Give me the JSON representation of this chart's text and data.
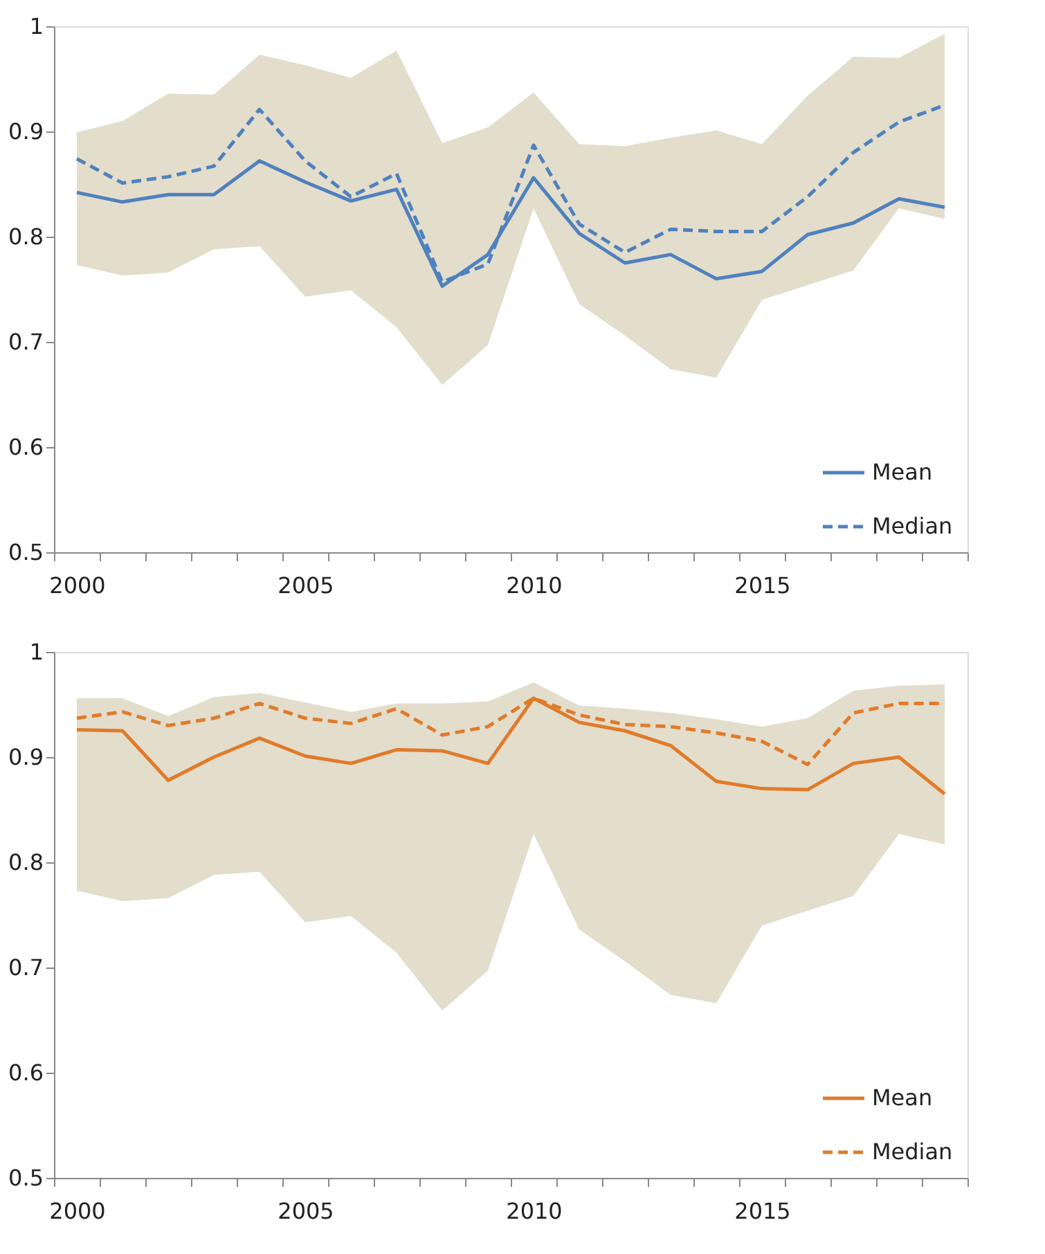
{
  "chart_data": [
    {
      "type": "line",
      "categories": [
        "2000",
        null,
        null,
        null,
        null,
        "2005",
        null,
        null,
        null,
        null,
        "2010",
        null,
        null,
        null,
        null,
        "2015",
        null,
        null,
        null,
        null
      ],
      "ylim": [
        0.5,
        1
      ],
      "yticks": [
        0.5,
        0.6,
        0.7,
        0.8,
        0.9,
        1
      ],
      "grid": false,
      "legend": "bottom right",
      "series": [
        {
          "name": "Mean",
          "color": "#4f81bd",
          "line_style": "solid",
          "values": [
            0.842,
            0.833,
            0.84,
            0.84,
            0.872,
            0.852,
            0.834,
            0.845,
            0.753,
            0.783,
            0.856,
            0.803,
            0.775,
            0.783,
            0.76,
            0.767,
            0.802,
            0.813,
            0.836,
            0.828
          ],
          "lower": [
            0.773,
            0.763,
            0.766,
            0.788,
            0.791,
            0.743,
            0.749,
            0.714,
            0.659,
            0.697,
            0.827,
            0.736,
            0.706,
            0.674,
            0.666,
            0.74,
            0.754,
            0.768,
            0.827,
            0.817
          ],
          "upper": [
            0.899,
            0.91,
            0.936,
            0.935,
            0.973,
            0.963,
            0.951,
            0.977,
            0.889,
            0.904,
            0.937,
            0.888,
            0.886,
            0.894,
            0.901,
            0.888,
            0.934,
            0.971,
            0.97,
            0.993
          ]
        },
        {
          "name": "Median",
          "color": "#4f81bd",
          "line_style": "dashed",
          "values": [
            0.874,
            0.851,
            0.857,
            0.867,
            0.921,
            0.872,
            0.838,
            0.86,
            0.757,
            0.774,
            0.887,
            0.812,
            0.785,
            0.807,
            0.805,
            0.805,
            0.838,
            0.88,
            0.909,
            0.925
          ]
        }
      ]
    },
    {
      "type": "line",
      "categories": [
        "2000",
        null,
        null,
        null,
        null,
        "2005",
        null,
        null,
        null,
        null,
        "2010",
        null,
        null,
        null,
        null,
        "2015",
        null,
        null,
        null,
        null
      ],
      "ylim": [
        0.5,
        1
      ],
      "yticks": [
        0.5,
        0.6,
        0.7,
        0.8,
        0.9,
        1
      ],
      "grid": false,
      "legend": "bottom right",
      "series": [
        {
          "name": "Mean",
          "color": "#e07b2a",
          "line_style": "solid",
          "values": [
            0.926,
            0.925,
            0.878,
            0.9,
            0.918,
            0.901,
            0.894,
            0.907,
            0.906,
            0.894,
            0.956,
            0.933,
            0.925,
            0.911,
            0.877,
            0.87,
            0.869,
            0.894,
            0.9,
            0.865
          ],
          "lower": [
            0.773,
            0.763,
            0.766,
            0.788,
            0.791,
            0.743,
            0.749,
            0.714,
            0.659,
            0.697,
            0.827,
            0.736,
            0.706,
            0.674,
            0.666,
            0.74,
            0.754,
            0.768,
            0.827,
            0.817
          ],
          "upper": [
            0.956,
            0.956,
            0.939,
            0.957,
            0.961,
            0.952,
            0.943,
            0.951,
            0.951,
            0.953,
            0.971,
            0.949,
            0.946,
            0.942,
            0.936,
            0.929,
            0.937,
            0.963,
            0.968,
            0.969
          ]
        },
        {
          "name": "Median",
          "color": "#e07b2a",
          "line_style": "dashed",
          "values": [
            0.937,
            0.943,
            0.93,
            0.937,
            0.951,
            0.937,
            0.932,
            0.946,
            0.921,
            0.929,
            0.956,
            0.94,
            0.931,
            0.929,
            0.923,
            0.915,
            0.893,
            0.942,
            0.951,
            0.951
          ]
        }
      ]
    }
  ]
}
